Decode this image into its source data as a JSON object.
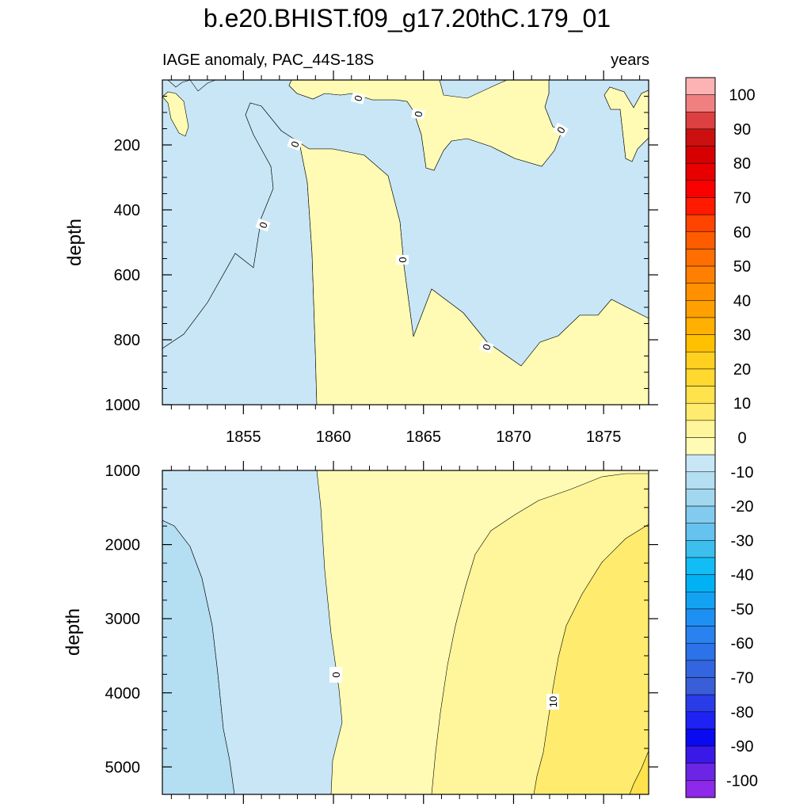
{
  "chart_data": {
    "type": "heatmap",
    "title": "b.e20.BHIST.f09_g17.20thC.179_01",
    "subtitle_left": "IAGE anomaly, PAC_44S-18S",
    "subtitle_right": "years",
    "panels": [
      {
        "name": "upper",
        "ylabel": "depth",
        "xlim": [
          1850.5,
          1877.5
        ],
        "ylim": [
          1000,
          0
        ],
        "x_ticks": [
          1855,
          1860,
          1865,
          1870,
          1875
        ],
        "y_ticks": [
          200,
          400,
          600,
          800,
          1000
        ],
        "contour_labels": [
          "0",
          "0",
          "0",
          "0",
          "0",
          "0",
          "0",
          "0"
        ]
      },
      {
        "name": "lower",
        "ylabel": "depth",
        "xlim": [
          1850.5,
          1877.5
        ],
        "ylim": [
          1000,
          5370
        ],
        "y_ticks": [
          1000,
          2000,
          3000,
          4000,
          5000
        ],
        "contour_labels": [
          "0",
          "10"
        ]
      }
    ],
    "colorbar": {
      "labels": [
        "100",
        "90",
        "80",
        "70",
        "60",
        "50",
        "40",
        "30",
        "20",
        "10",
        "0",
        "-10",
        "-20",
        "-30",
        "-40",
        "-50",
        "-60",
        "-70",
        "-80",
        "-90",
        "-100"
      ],
      "colors": [
        "#fdb3b3",
        "#f08080",
        "#dc4040",
        "#cc1010",
        "#d60000",
        "#e80000",
        "#fa0000",
        "#ff1a00",
        "#ff4400",
        "#ff5c00",
        "#ff6e00",
        "#ff8000",
        "#ff9100",
        "#ffa000",
        "#ffb000",
        "#ffc000",
        "#ffd020",
        "#ffd830",
        "#ffe24c",
        "#ffec6e",
        "#fff59a",
        "#fffbb4",
        "#c8e6f6",
        "#b4def2",
        "#a2d8ef",
        "#82cbee",
        "#66c2ee",
        "#3dbfee",
        "#12bdf6",
        "#00b2f4",
        "#13a2f2",
        "#1e90f4",
        "#2882f0",
        "#2c72e8",
        "#3465e0",
        "#3a5ed8",
        "#2a3ce8",
        "#1e22f2",
        "#0a0af0",
        "#3a18e8",
        "#6a26e4",
        "#8e28ea"
      ]
    }
  }
}
